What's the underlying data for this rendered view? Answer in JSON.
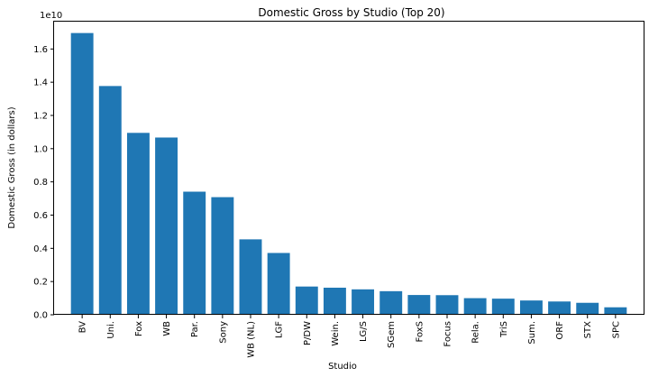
{
  "chart_data": {
    "type": "bar",
    "title": "Domestic Gross by Studio (Top 20)",
    "xlabel": "Studio",
    "ylabel": "Domestic Gross (in dollars)",
    "offset_label": "1e10",
    "ylim": [
      0,
      1.77
    ],
    "yticks": [
      "0.0",
      "0.2",
      "0.4",
      "0.6",
      "0.8",
      "1.0",
      "1.2",
      "1.4",
      "1.6"
    ],
    "categories": [
      "BV",
      "Uni.",
      "Fox",
      "WB",
      "Par.",
      "Sony",
      "WB (NL)",
      "LGF",
      "P/DW",
      "Wein.",
      "LG/S",
      "SGem",
      "FoxS",
      "Focus",
      "Rela.",
      "TriS",
      "Sum.",
      "ORF",
      "STX",
      "SPC"
    ],
    "values": [
      1.696,
      1.377,
      1.095,
      1.067,
      0.741,
      0.708,
      0.454,
      0.372,
      0.17,
      0.163,
      0.153,
      0.142,
      0.119,
      0.118,
      0.1,
      0.097,
      0.086,
      0.08,
      0.072,
      0.045
    ],
    "bar_color": "#1f77b4",
    "grid": false,
    "legend": "none"
  }
}
